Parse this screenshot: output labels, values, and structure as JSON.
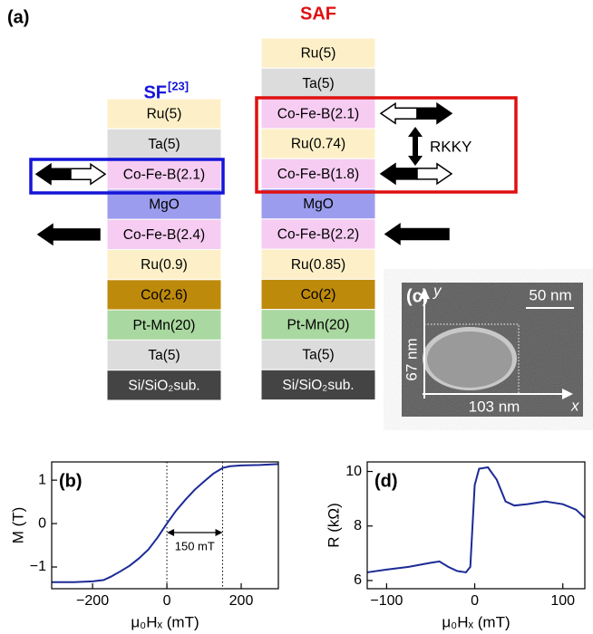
{
  "panel_a": {
    "label": "(a)",
    "sf_title": "SF",
    "sf_ref": "[23]",
    "saf_title": "SAF",
    "rkky": "RKKY",
    "sf_layers": [
      {
        "name": "Ru(5)",
        "color": "#fdf0c8"
      },
      {
        "name": "Ta(5)",
        "color": "#dcdcdc"
      },
      {
        "name": "Co-Fe-B(2.1)",
        "color": "#f6ccf2"
      },
      {
        "name": "MgO",
        "color": "#9c9cee"
      },
      {
        "name": "Co-Fe-B(2.4)",
        "color": "#f6ccf2"
      },
      {
        "name": "Ru(0.9)",
        "color": "#fdf0c8"
      },
      {
        "name": "Co(2.6)",
        "color": "#be8a0c"
      },
      {
        "name": "Pt-Mn(20)",
        "color": "#a9d8a0"
      },
      {
        "name": "Ta(5)",
        "color": "#dcdcdc"
      },
      {
        "name": "Si/SiO₂sub.",
        "color": "#444444"
      }
    ],
    "saf_layers": [
      {
        "name": "Ru(5)",
        "color": "#fdf0c8"
      },
      {
        "name": "Ta(5)",
        "color": "#dcdcdc"
      },
      {
        "name": "Co-Fe-B(2.1)",
        "color": "#f6ccf2"
      },
      {
        "name": "Ru(0.74)",
        "color": "#fdf0c8"
      },
      {
        "name": "Co-Fe-B(1.8)",
        "color": "#f6ccf2"
      },
      {
        "name": "MgO",
        "color": "#9c9cee"
      },
      {
        "name": "Co-Fe-B(2.2)",
        "color": "#f6ccf2"
      },
      {
        "name": "Ru(0.85)",
        "color": "#fdf0c8"
      },
      {
        "name": "Co(2)",
        "color": "#be8a0c"
      },
      {
        "name": "Pt-Mn(20)",
        "color": "#a9d8a0"
      },
      {
        "name": "Ta(5)",
        "color": "#dcdcdc"
      },
      {
        "name": "Si/SiO₂sub.",
        "color": "#444444"
      }
    ]
  },
  "panel_c": {
    "label": "(c)",
    "y_axis": "y",
    "x_axis": "x",
    "scale_bar": "50 nm",
    "height": "67 nm",
    "width": "103 nm"
  },
  "chart_data": [
    {
      "type": "line",
      "label": "(b)",
      "y_label": "M (T)",
      "x_label": "μ₀Hₓ (mT)",
      "x": [
        -310,
        -250,
        -200,
        -170,
        -150,
        -125,
        -100,
        -75,
        -50,
        -25,
        0,
        25,
        50,
        75,
        100,
        125,
        150,
        170,
        200,
        250,
        300
      ],
      "series": [
        {
          "color": "#1c2a96",
          "values": [
            -1.35,
            -1.35,
            -1.33,
            -1.3,
            -1.22,
            -1.1,
            -0.97,
            -0.8,
            -0.6,
            -0.32,
            0,
            0.3,
            0.55,
            0.78,
            0.97,
            1.15,
            1.28,
            1.32,
            1.34,
            1.35,
            1.37
          ]
        }
      ],
      "xlim": [
        -310,
        300
      ],
      "xticks": [
        {
          "value": -200,
          "label": "−200"
        },
        0,
        200
      ],
      "ylim": [
        -1.5,
        1.42
      ],
      "yticks": [
        {
          "value": -1,
          "label": "−1"
        },
        0,
        1
      ],
      "vlines": [
        0,
        150
      ],
      "annotation": "150 mT"
    },
    {
      "type": "line",
      "label": "(d)",
      "y_label": "R (kΩ)",
      "x_label": "μ₀Hₓ (mT)",
      "x": [
        -122,
        -100,
        -75,
        -50,
        -40,
        -30,
        -20,
        -10,
        -5,
        0,
        5,
        15,
        25,
        35,
        45,
        60,
        80,
        100,
        115,
        125
      ],
      "series": [
        {
          "color": "#1c2a96",
          "values": [
            6.3,
            6.4,
            6.5,
            6.65,
            6.7,
            6.5,
            6.35,
            6.3,
            6.5,
            9.5,
            10.1,
            10.15,
            9.7,
            8.9,
            8.75,
            8.8,
            8.9,
            8.8,
            8.6,
            8.3
          ]
        }
      ],
      "xlim": [
        -122,
        125
      ],
      "xticks": [
        {
          "value": -100,
          "label": "−100"
        },
        0,
        100
      ],
      "ylim": [
        5.7,
        10.35
      ],
      "yticks": [
        6,
        8,
        10
      ]
    }
  ]
}
